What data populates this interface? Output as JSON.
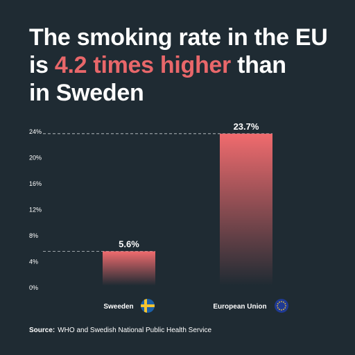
{
  "headline": {
    "line1": "The smoking rate in the EU",
    "line2_prefix": "is ",
    "line2_highlight": "4.2 times higher",
    "line2_suffix": " than",
    "line3": "in Sweden"
  },
  "source": {
    "label": "Source:",
    "text": "WHO and Swedish National Public Health Service"
  },
  "colors": {
    "background": "#1f2b33",
    "highlight": "#e8676a",
    "bar_top": "#f06b6e"
  },
  "chart_data": {
    "type": "bar",
    "categories": [
      "Sweeden",
      "European Union"
    ],
    "values": [
      5.6,
      23.7
    ],
    "value_labels": [
      "5.6%",
      "23.7%"
    ],
    "category_icons": [
      "sweden-flag-icon",
      "eu-flag-icon"
    ],
    "yticks": [
      0,
      4,
      8,
      12,
      16,
      20,
      24
    ],
    "ytick_labels": [
      "0%",
      "4%",
      "8%",
      "12%",
      "16%",
      "20%",
      "24%"
    ],
    "ylim": [
      0,
      24
    ],
    "grid": false,
    "reference_lines": "dashed lines at each bar value",
    "xlabel": "",
    "ylabel": ""
  }
}
